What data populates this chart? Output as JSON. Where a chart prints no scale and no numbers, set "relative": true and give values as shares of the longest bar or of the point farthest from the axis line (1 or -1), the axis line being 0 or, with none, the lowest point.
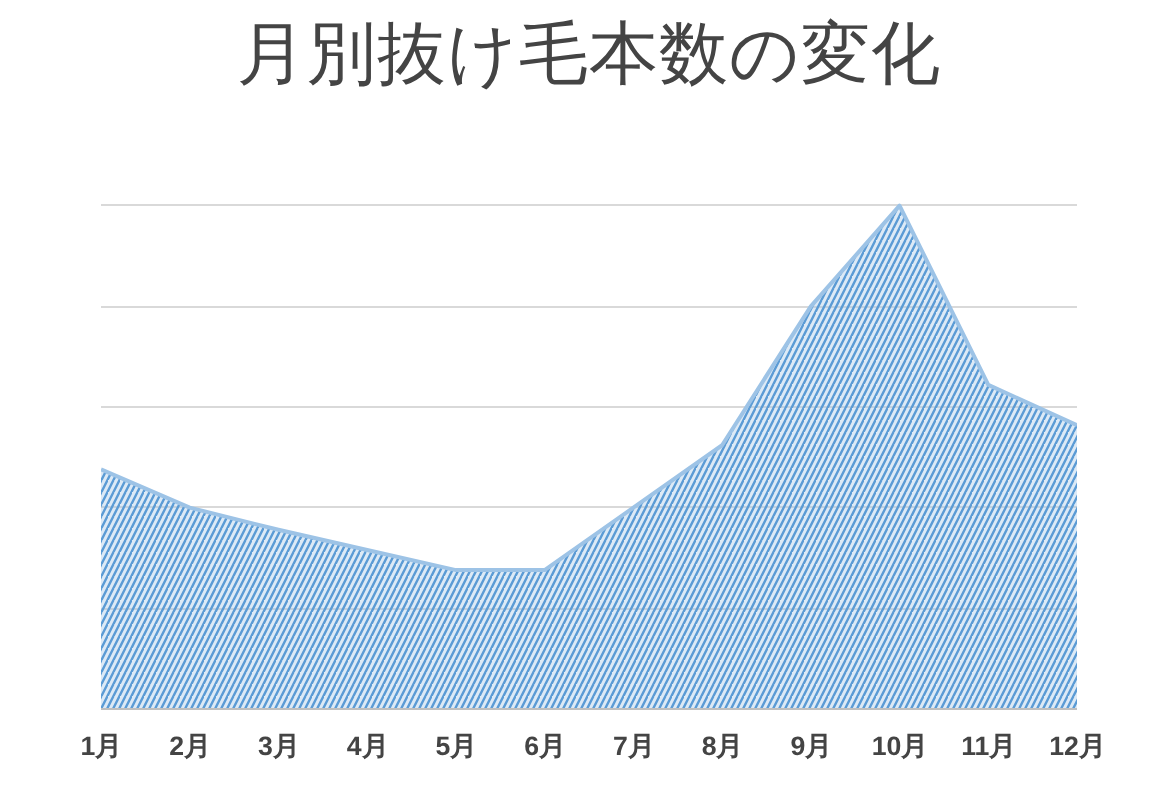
{
  "chart_data": {
    "type": "area",
    "title": "月別抜け毛本数の変化",
    "relative": true,
    "grid": "y",
    "categories": [
      "1月",
      "2月",
      "3月",
      "4月",
      "5月",
      "6月",
      "7月",
      "8月",
      "9月",
      "10月",
      "11月",
      "12月"
    ],
    "series": [
      {
        "color": "#9dc3e6",
        "values": [
          0.476,
          0.4,
          0.356,
          0.316,
          0.276,
          0.276,
          0.4,
          0.524,
          0.8,
          1,
          0.644,
          0.564
        ]
      }
    ]
  }
}
